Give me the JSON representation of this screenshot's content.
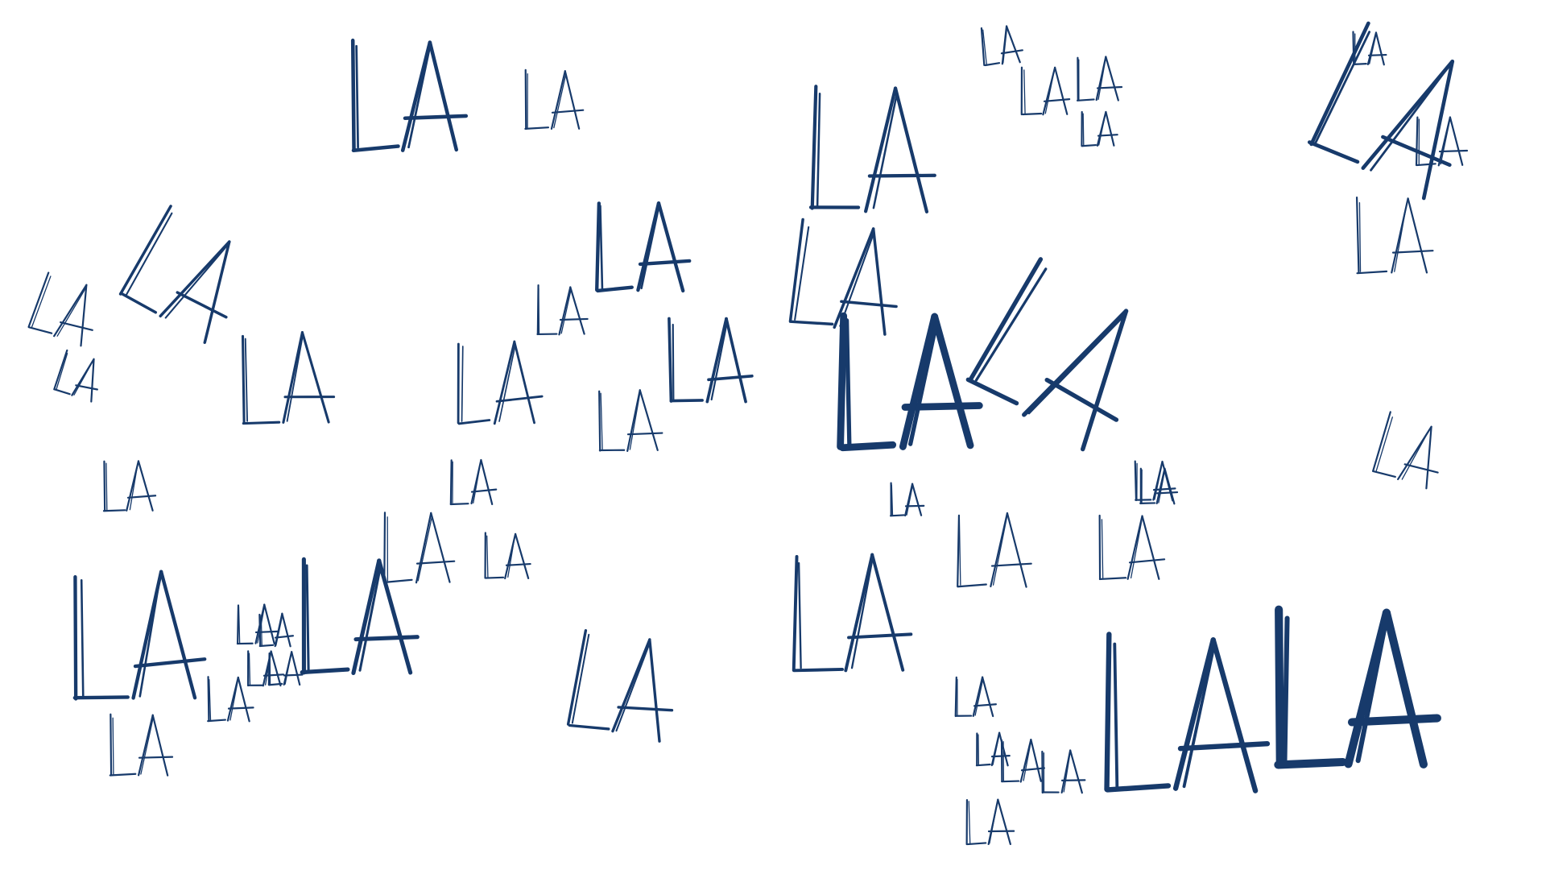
{
  "canvas": {
    "background": "#ffffff",
    "ink_color": "#173a6b"
  },
  "scribbles": [
    {
      "text": "LA"
    },
    {
      "text": "LA"
    },
    {
      "text": "LA"
    },
    {
      "text": "LA"
    },
    {
      "text": "LA"
    },
    {
      "text": "LA"
    },
    {
      "text": "LA"
    },
    {
      "text": "LA"
    },
    {
      "text": "LA"
    },
    {
      "text": "LA"
    },
    {
      "text": "LA"
    },
    {
      "text": "LA"
    },
    {
      "text": "LA"
    },
    {
      "text": "LA"
    },
    {
      "text": "LA"
    },
    {
      "text": "LA"
    },
    {
      "text": "LA"
    },
    {
      "text": "LA"
    },
    {
      "text": "LA"
    },
    {
      "text": "LA"
    },
    {
      "text": "LA"
    },
    {
      "text": "LA"
    },
    {
      "text": "LA"
    },
    {
      "text": "LA"
    },
    {
      "text": "LA"
    },
    {
      "text": "LA"
    },
    {
      "text": "LA"
    },
    {
      "text": "LA"
    },
    {
      "text": "LA"
    },
    {
      "text": "LA"
    },
    {
      "text": "LA"
    },
    {
      "text": "LA"
    },
    {
      "text": "LA"
    },
    {
      "text": "LA"
    },
    {
      "text": "LA"
    },
    {
      "text": "LA"
    },
    {
      "text": "LA"
    },
    {
      "text": "LA"
    },
    {
      "text": "LA"
    },
    {
      "text": "LA"
    },
    {
      "text": "LA"
    },
    {
      "text": "LA"
    },
    {
      "text": "LA"
    },
    {
      "text": "LA"
    },
    {
      "text": "LA"
    },
    {
      "text": "LA"
    },
    {
      "text": "LA"
    },
    {
      "text": "LA"
    },
    {
      "text": "LA"
    },
    {
      "text": "LA"
    }
  ]
}
